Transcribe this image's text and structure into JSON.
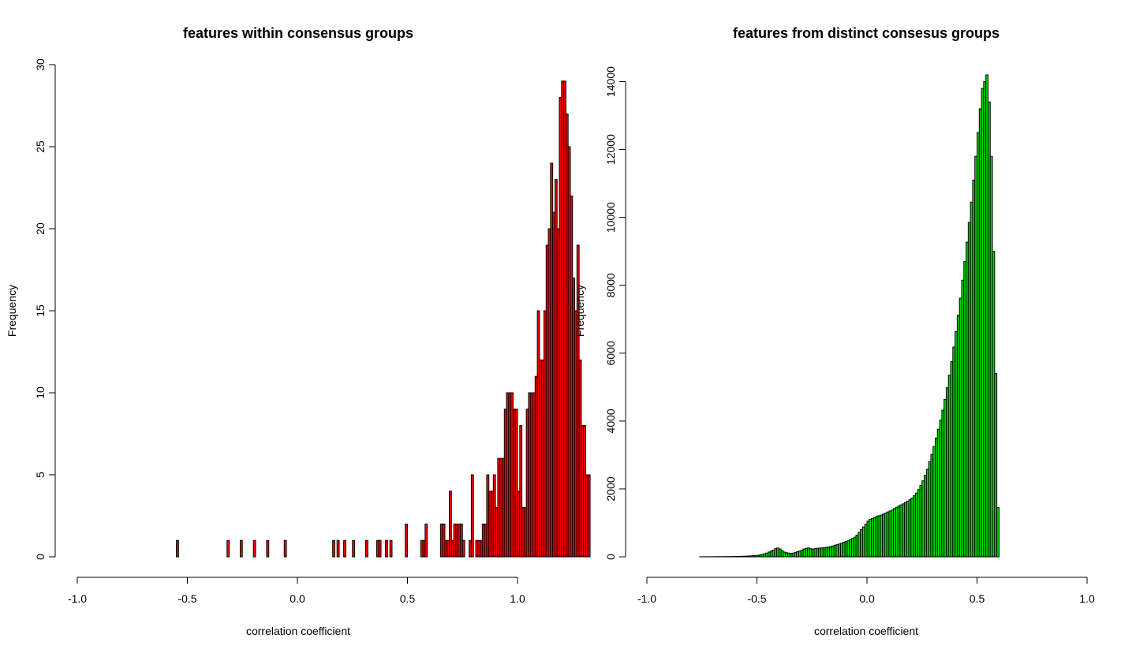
{
  "chart_data": [
    {
      "type": "bar",
      "title": "features within consensus groups",
      "xlabel": "correlation coefficient",
      "ylabel": "Frequency",
      "bar_color": "#ff0000",
      "bar_border": "#000000",
      "xlim": [
        -1.0,
        1.0
      ],
      "ylim": [
        0,
        30
      ],
      "xticks": [
        "-1.0",
        "-0.5",
        "0.0",
        "0.5",
        "1.0"
      ],
      "xtick_values": [
        -1.0,
        -0.5,
        0.0,
        0.5,
        1.0
      ],
      "yticks": [
        "0",
        "5",
        "10",
        "15",
        "20",
        "25",
        "30"
      ],
      "ytick_values": [
        0,
        5,
        10,
        15,
        20,
        25,
        30
      ],
      "bin_start": -0.55,
      "bin_width": 0.01,
      "values": [
        1,
        0,
        0,
        0,
        0,
        0,
        0,
        0,
        0,
        0,
        0,
        0,
        0,
        0,
        0,
        0,
        0,
        0,
        0,
        0,
        0,
        0,
        0,
        1,
        0,
        0,
        0,
        0,
        0,
        1,
        0,
        0,
        0,
        0,
        0,
        1,
        0,
        0,
        0,
        0,
        0,
        1,
        0,
        0,
        0,
        0,
        0,
        0,
        0,
        1,
        0,
        0,
        0,
        0,
        0,
        0,
        0,
        0,
        0,
        0,
        0,
        0,
        0,
        0,
        0,
        0,
        0,
        0,
        0,
        0,
        0,
        1,
        0,
        1,
        0,
        0,
        1,
        0,
        0,
        0,
        1,
        0,
        0,
        0,
        0,
        0,
        1,
        0,
        0,
        0,
        0,
        1,
        1,
        0,
        0,
        1,
        0,
        1,
        0,
        0,
        0,
        0,
        0,
        0,
        2,
        0,
        0,
        0,
        0,
        0,
        0,
        1,
        1,
        2,
        0,
        0,
        0,
        0,
        0,
        0,
        2,
        2,
        1,
        1,
        4,
        1,
        2,
        2,
        2,
        2,
        1,
        0,
        0,
        1,
        5,
        0,
        1,
        1,
        1,
        2,
        2,
        5,
        4,
        4,
        5,
        3,
        6,
        6,
        6,
        9,
        10,
        10,
        10,
        9,
        9,
        4,
        8,
        3,
        3,
        9,
        10,
        10,
        10,
        11,
        15,
        12,
        12,
        15,
        19,
        20,
        24,
        21,
        23,
        20,
        28,
        29,
        29,
        27,
        25,
        22,
        17,
        15,
        19,
        12,
        8,
        8,
        5,
        5
      ],
      "values_note_visible": "",
      "bin_source": "left"
    },
    {
      "type": "bar",
      "title": "features from distinct consesus groups",
      "xlabel": "correlation coefficient",
      "ylabel": "Frequency",
      "bar_color": "#00dd00",
      "bar_border": "#000000",
      "xlim": [
        -1.0,
        1.0
      ],
      "ylim": [
        0,
        14500
      ],
      "xticks": [
        "-1.0",
        "-0.5",
        "0.0",
        "0.5",
        "1.0"
      ],
      "xtick_values": [
        -1.0,
        -0.5,
        0.0,
        0.5,
        1.0
      ],
      "yticks": [
        "0",
        "2000",
        "4000",
        "6000",
        "8000",
        "10000",
        "12000",
        "14000"
      ],
      "ytick_values": [
        0,
        2000,
        4000,
        6000,
        8000,
        10000,
        12000,
        14000
      ],
      "bin_start": -0.76,
      "bin_width": 0.01,
      "values": [
        2,
        2,
        2,
        3,
        3,
        3,
        3,
        4,
        4,
        5,
        5,
        6,
        6,
        7,
        8,
        9,
        10,
        12,
        14,
        16,
        18,
        20,
        25,
        30,
        35,
        40,
        45,
        55,
        70,
        90,
        110,
        140,
        170,
        200,
        240,
        260,
        230,
        180,
        140,
        120,
        110,
        100,
        110,
        130,
        150,
        170,
        200,
        230,
        250,
        260,
        240,
        230,
        240,
        250,
        260,
        260,
        270,
        280,
        290,
        300,
        320,
        340,
        360,
        380,
        400,
        430,
        450,
        470,
        500,
        540,
        580,
        640,
        720,
        800,
        880,
        960,
        1050,
        1100,
        1130,
        1160,
        1190,
        1210,
        1230,
        1260,
        1290,
        1320,
        1350,
        1380,
        1420,
        1460,
        1500,
        1530,
        1560,
        1600,
        1640,
        1680,
        1730,
        1800,
        1880,
        1980,
        2100,
        2240,
        2400,
        2580,
        2800,
        3020,
        3250,
        3500,
        3760,
        4030,
        4320,
        4640,
        4980,
        5350,
        5750,
        6180,
        6640,
        7120,
        7620,
        8150,
        8700,
        9270,
        9850,
        10450,
        11100,
        11800,
        12500,
        13200,
        13800,
        14000,
        14200,
        13400,
        11800,
        9000,
        5400,
        1450
      ]
    }
  ]
}
